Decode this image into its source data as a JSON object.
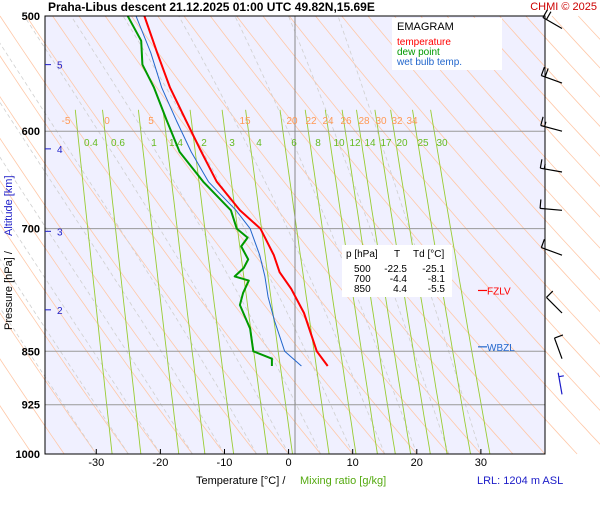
{
  "header": {
    "title": "Praha-Libus   descent   21.12.2025 01:00 UTC  49.82N,15.69E",
    "credit": "CHMI © 2025"
  },
  "legend": {
    "title": "EMAGRAM",
    "items": [
      {
        "label": "temperature",
        "color": "#ff0000"
      },
      {
        "label": "dew point",
        "color": "#009900"
      },
      {
        "label": "wet bulb temp.",
        "color": "#2266cc"
      }
    ]
  },
  "table": {
    "headers": [
      "p [hPa]",
      "T",
      "Td [°C]"
    ],
    "rows": [
      [
        "500",
        "-22.5",
        "-25.1"
      ],
      [
        "700",
        "-4.4",
        "-8.1"
      ],
      [
        "850",
        "4.4",
        "-5.5"
      ]
    ]
  },
  "markers": {
    "fzlv": {
      "label": "FZLV",
      "pressure": 772
    },
    "wbzl": {
      "label": "WBZL",
      "pressure": 844
    }
  },
  "footer": {
    "lrl": "LRL: 1204 m ASL"
  },
  "axes": {
    "ylabel_pressure": "Pressure [hPa]  /",
    "ylabel_altitude": "Altitude [km]",
    "xlabel_temperature": "Temperature [°C]  /",
    "xlabel_mixing": "Mixing ratio [g/kg]"
  },
  "chart_data": {
    "type": "line",
    "title": "EMAGRAM",
    "xlabel": "Temperature [°C]",
    "ylabel": "Pressure [hPa]",
    "xlim": [
      -38,
      40
    ],
    "ylim": [
      1000,
      500
    ],
    "x_ticks": [
      -30,
      -20,
      -10,
      0,
      10,
      20,
      30
    ],
    "pressure_ticks": [
      500,
      600,
      700,
      850,
      925,
      1000
    ],
    "altitude_ticks": [
      {
        "km": 5,
        "p": 540
      },
      {
        "km": 4,
        "p": 617
      },
      {
        "km": 3,
        "p": 703
      },
      {
        "km": 2,
        "p": 796
      }
    ],
    "mixing_ratio_labels": [
      "0.4",
      "0.6",
      "1",
      "1.4",
      "2",
      "3",
      "4",
      "6",
      "8",
      "10",
      "12",
      "14",
      "17",
      "20",
      "25",
      "30"
    ],
    "theta_labels": [
      "-5",
      "0",
      "5",
      "15",
      "20",
      "22",
      "24",
      "26",
      "28",
      "30",
      "32",
      "34"
    ],
    "series": [
      {
        "name": "temperature",
        "color": "#ff0000",
        "points": [
          [
            -22.5,
            500
          ],
          [
            -20.5,
            530
          ],
          [
            -18.5,
            560
          ],
          [
            -16,
            590
          ],
          [
            -13.6,
            620
          ],
          [
            -11.2,
            650
          ],
          [
            -7.6,
            680
          ],
          [
            -4.4,
            700
          ],
          [
            -2.3,
            730
          ],
          [
            -1.4,
            750
          ],
          [
            0.4,
            770
          ],
          [
            2.4,
            800
          ],
          [
            4.4,
            850
          ],
          [
            6.1,
            870
          ]
        ]
      },
      {
        "name": "dew point",
        "color": "#009900",
        "points": [
          [
            -25.1,
            500
          ],
          [
            -23,
            520
          ],
          [
            -22.8,
            540
          ],
          [
            -21,
            560
          ],
          [
            -19,
            590
          ],
          [
            -17,
            620
          ],
          [
            -13.3,
            650
          ],
          [
            -9,
            680
          ],
          [
            -8.1,
            700
          ],
          [
            -6.4,
            710
          ],
          [
            -7.4,
            720
          ],
          [
            -6.3,
            735
          ],
          [
            -7,
            745
          ],
          [
            -8.4,
            755
          ],
          [
            -6.2,
            760
          ],
          [
            -7.1,
            775
          ],
          [
            -7.6,
            790
          ],
          [
            -6,
            820
          ],
          [
            -5.5,
            850
          ],
          [
            -2.6,
            860
          ],
          [
            -2.6,
            870
          ]
        ]
      },
      {
        "name": "wet bulb temp.",
        "color": "#2266cc",
        "points": [
          [
            -23.8,
            500
          ],
          [
            -21.5,
            530
          ],
          [
            -19.8,
            560
          ],
          [
            -17.5,
            590
          ],
          [
            -15.2,
            620
          ],
          [
            -12.5,
            650
          ],
          [
            -8.2,
            680
          ],
          [
            -6,
            700
          ],
          [
            -4.5,
            730
          ],
          [
            -3.7,
            755
          ],
          [
            -3.2,
            780
          ],
          [
            -2.2,
            810
          ],
          [
            -0.6,
            850
          ],
          [
            2,
            870
          ]
        ]
      }
    ],
    "wind_barbs": [
      {
        "p": 510,
        "dir": 300,
        "kt": 20
      },
      {
        "p": 556,
        "dir": 290,
        "kt": 20
      },
      {
        "p": 600,
        "dir": 285,
        "kt": 15
      },
      {
        "p": 640,
        "dir": 280,
        "kt": 15
      },
      {
        "p": 680,
        "dir": 275,
        "kt": 10
      },
      {
        "p": 730,
        "dir": 290,
        "kt": 10
      },
      {
        "p": 800,
        "dir": 315,
        "kt": 10
      },
      {
        "p": 860,
        "dir": 340,
        "kt": 10
      },
      {
        "p": 910,
        "dir": 350,
        "kt": 5
      }
    ]
  }
}
